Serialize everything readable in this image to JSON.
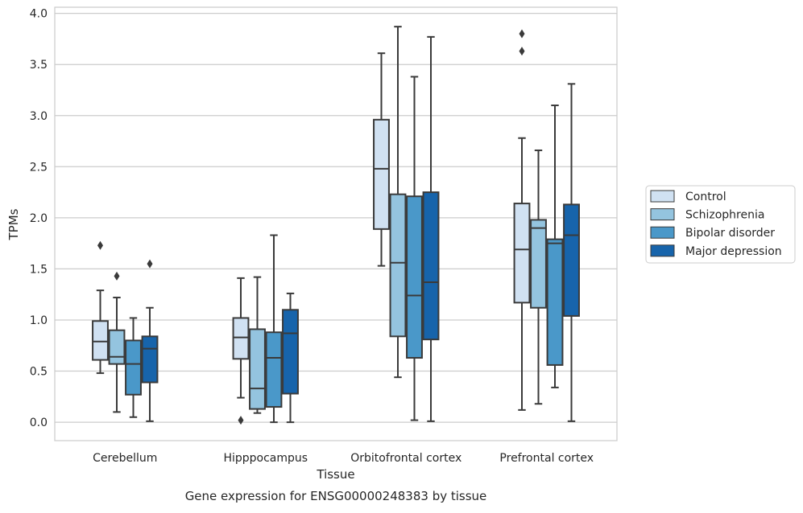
{
  "caption": "Gene expression for ENSG00000248383 by tissue",
  "chart_data": {
    "type": "box",
    "title": "",
    "xlabel": "Tissue",
    "ylabel": "TPMs",
    "ylim": [
      -0.18,
      4.06
    ],
    "yticks": [
      0.0,
      0.5,
      1.0,
      1.5,
      2.0,
      2.5,
      3.0,
      3.5,
      4.0
    ],
    "ytick_labels": [
      "0.0",
      "0.5",
      "1.0",
      "1.5",
      "2.0",
      "2.5",
      "3.0",
      "3.5",
      "4.0"
    ],
    "grid": "horizontal",
    "legend_position": "right",
    "categories": [
      "Cerebellum",
      "Hipppocampus",
      "Orbitofrontal cortex",
      "Prefrontal cortex"
    ],
    "series": [
      {
        "name": "Control",
        "color": "#d0e1f2",
        "boxes": [
          {
            "whislo": 0.48,
            "q1": 0.61,
            "med": 0.79,
            "q3": 0.99,
            "whishi": 1.29,
            "fliers": [
              1.73
            ]
          },
          {
            "whislo": 0.24,
            "q1": 0.62,
            "med": 0.83,
            "q3": 1.02,
            "whishi": 1.41,
            "fliers": [
              0.02
            ]
          },
          {
            "whislo": 1.53,
            "q1": 1.89,
            "med": 2.48,
            "q3": 2.96,
            "whishi": 3.61,
            "fliers": []
          },
          {
            "whislo": 0.12,
            "q1": 1.17,
            "med": 1.69,
            "q3": 2.14,
            "whishi": 2.78,
            "fliers": [
              3.63,
              3.8
            ]
          }
        ]
      },
      {
        "name": "Schizophrenia",
        "color": "#94c4df",
        "boxes": [
          {
            "whislo": 0.1,
            "q1": 0.57,
            "med": 0.64,
            "q3": 0.9,
            "whishi": 1.22,
            "fliers": [
              1.43
            ]
          },
          {
            "whislo": 0.09,
            "q1": 0.13,
            "med": 0.33,
            "q3": 0.91,
            "whishi": 1.42,
            "fliers": []
          },
          {
            "whislo": 0.44,
            "q1": 0.84,
            "med": 1.56,
            "q3": 2.23,
            "whishi": 3.87,
            "fliers": []
          },
          {
            "whislo": 0.18,
            "q1": 1.12,
            "med": 1.9,
            "q3": 1.98,
            "whishi": 2.66,
            "fliers": []
          }
        ]
      },
      {
        "name": "Bipolar disorder",
        "color": "#4a98c9",
        "boxes": [
          {
            "whislo": 0.05,
            "q1": 0.27,
            "med": 0.57,
            "q3": 0.8,
            "whishi": 1.02,
            "fliers": []
          },
          {
            "whislo": 0.0,
            "q1": 0.15,
            "med": 0.63,
            "q3": 0.88,
            "whishi": 1.83,
            "fliers": []
          },
          {
            "whislo": 0.02,
            "q1": 0.63,
            "med": 1.24,
            "q3": 2.21,
            "whishi": 3.38,
            "fliers": []
          },
          {
            "whislo": 0.34,
            "q1": 0.56,
            "med": 1.75,
            "q3": 1.79,
            "whishi": 3.1,
            "fliers": []
          }
        ]
      },
      {
        "name": "Major depression",
        "color": "#1764ab",
        "boxes": [
          {
            "whislo": 0.01,
            "q1": 0.39,
            "med": 0.72,
            "q3": 0.84,
            "whishi": 1.12,
            "fliers": [
              1.55
            ]
          },
          {
            "whislo": 0.0,
            "q1": 0.28,
            "med": 0.87,
            "q3": 1.1,
            "whishi": 1.26,
            "fliers": []
          },
          {
            "whislo": 0.01,
            "q1": 0.81,
            "med": 1.37,
            "q3": 2.25,
            "whishi": 3.77,
            "fliers": []
          },
          {
            "whislo": 0.01,
            "q1": 1.04,
            "med": 1.83,
            "q3": 2.13,
            "whishi": 3.31,
            "fliers": []
          }
        ]
      }
    ]
  }
}
